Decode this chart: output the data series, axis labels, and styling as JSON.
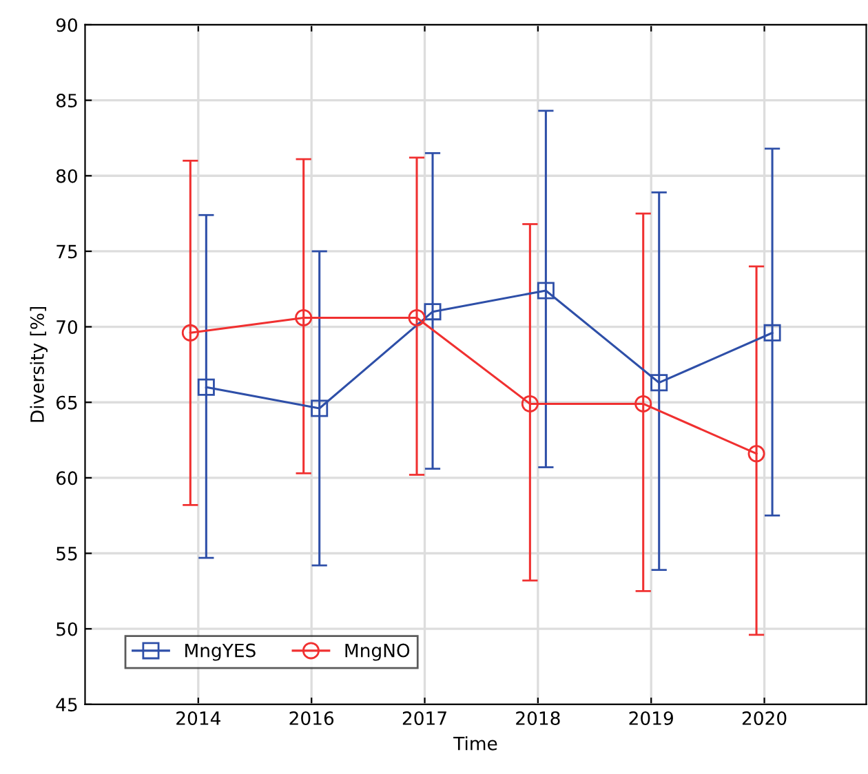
{
  "chart_data": {
    "type": "line",
    "xlabel": "Time",
    "ylabel": "Diversity [%]",
    "categories": [
      "2014",
      "2016",
      "2017",
      "2018",
      "2019",
      "2020"
    ],
    "series": [
      {
        "name": "MngYES",
        "color": "#2e4fa8",
        "marker": "square",
        "values": [
          66.0,
          64.6,
          71.0,
          72.4,
          66.3,
          69.6
        ],
        "errors": [
          [
            54.7,
            77.4
          ],
          [
            54.2,
            75.0
          ],
          [
            60.6,
            81.5
          ],
          [
            60.7,
            84.3
          ],
          [
            53.9,
            78.9
          ],
          [
            57.5,
            81.8
          ]
        ]
      },
      {
        "name": "MngNO",
        "color": "#f03030",
        "marker": "circle",
        "values": [
          69.6,
          70.6,
          70.6,
          64.9,
          64.9,
          61.6
        ],
        "errors": [
          [
            58.2,
            81.0
          ],
          [
            60.3,
            81.1
          ],
          [
            60.2,
            81.2
          ],
          [
            53.2,
            76.8
          ],
          [
            52.5,
            77.5
          ],
          [
            49.6,
            74.0
          ]
        ]
      }
    ],
    "ylim": [
      45,
      90
    ],
    "yticks": [
      45,
      50,
      55,
      60,
      65,
      70,
      75,
      80,
      85,
      90
    ],
    "grid": true,
    "legend": "bottom left",
    "line_style": "solid"
  }
}
